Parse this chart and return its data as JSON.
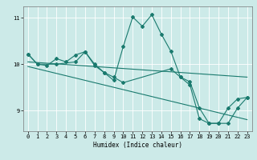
{
  "xlabel": "Humidex (Indice chaleur)",
  "bg_color": "#cceae8",
  "line_color": "#1a7a6e",
  "grid_color": "#ffffff",
  "xlim": [
    -0.5,
    23.5
  ],
  "ylim": [
    8.55,
    11.25
  ],
  "yticks": [
    9,
    10,
    11
  ],
  "xticks": [
    0,
    1,
    2,
    3,
    4,
    5,
    6,
    7,
    8,
    9,
    10,
    11,
    12,
    13,
    14,
    15,
    16,
    17,
    18,
    19,
    20,
    21,
    22,
    23
  ],
  "line1_x": [
    0,
    1,
    2,
    3,
    4,
    5,
    6,
    7,
    8,
    9,
    10,
    11,
    12,
    13,
    14,
    15,
    16,
    17,
    18,
    19,
    20,
    21,
    22,
    23
  ],
  "line1_y": [
    10.22,
    10.0,
    9.97,
    10.12,
    10.05,
    10.2,
    10.27,
    10.0,
    9.82,
    9.65,
    10.38,
    11.02,
    10.82,
    11.07,
    10.65,
    10.28,
    9.72,
    9.62,
    9.05,
    8.72,
    8.72,
    8.72,
    9.05,
    9.28
  ],
  "line2_x": [
    0,
    1,
    3,
    5,
    6,
    7,
    8,
    9,
    10,
    15,
    16,
    17,
    18,
    19,
    20,
    21,
    22,
    23
  ],
  "line2_y": [
    10.22,
    10.0,
    10.0,
    10.05,
    10.27,
    9.97,
    9.82,
    9.72,
    9.6,
    9.9,
    9.72,
    9.55,
    8.82,
    8.72,
    8.72,
    9.05,
    9.25,
    9.28
  ],
  "line3_x": [
    0,
    23
  ],
  "line3_y": [
    10.05,
    9.72
  ],
  "line4_x": [
    0,
    23
  ],
  "line4_y": [
    9.95,
    8.8
  ]
}
